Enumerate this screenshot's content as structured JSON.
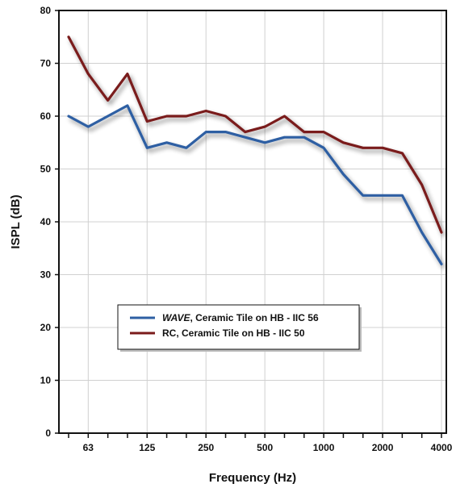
{
  "chart_data": {
    "type": "line",
    "xlabel": "Frequency (Hz)",
    "ylabel": "ISPL (dB)",
    "ylim": [
      0,
      80
    ],
    "yticks": [
      0,
      10,
      20,
      30,
      40,
      50,
      60,
      70,
      80
    ],
    "x": [
      50,
      63,
      80,
      100,
      125,
      160,
      200,
      250,
      315,
      400,
      500,
      630,
      800,
      1000,
      1250,
      1600,
      2000,
      2500,
      3150,
      4000
    ],
    "xtick_labels": [
      "63",
      "125",
      "250",
      "500",
      "1000",
      "2000",
      "4000"
    ],
    "xtick_label_values": [
      63,
      125,
      250,
      500,
      1000,
      2000,
      4000
    ],
    "grid": true,
    "legend_position": "bottom-center",
    "series": [
      {
        "name": "WAVE, Ceramic Tile on HB - IIC 56",
        "name_italic": "WAVE",
        "name_rest": ", Ceramic Tile on HB - IIC 56",
        "color": "#2e5fa3",
        "values": [
          60,
          58,
          60,
          62,
          54,
          55,
          54,
          57,
          57,
          56,
          55,
          56,
          56,
          54,
          49,
          45,
          45,
          45,
          38,
          32
        ]
      },
      {
        "name": "RC, Ceramic Tile on HB - IIC 50",
        "name_italic": "",
        "name_rest": "RC, Ceramic Tile on HB - IIC 50",
        "color": "#7a1b1b",
        "values": [
          75,
          68,
          63,
          68,
          59,
          60,
          60,
          61,
          60,
          57,
          58,
          60,
          57,
          57,
          55,
          54,
          54,
          53,
          47,
          38
        ]
      }
    ]
  }
}
